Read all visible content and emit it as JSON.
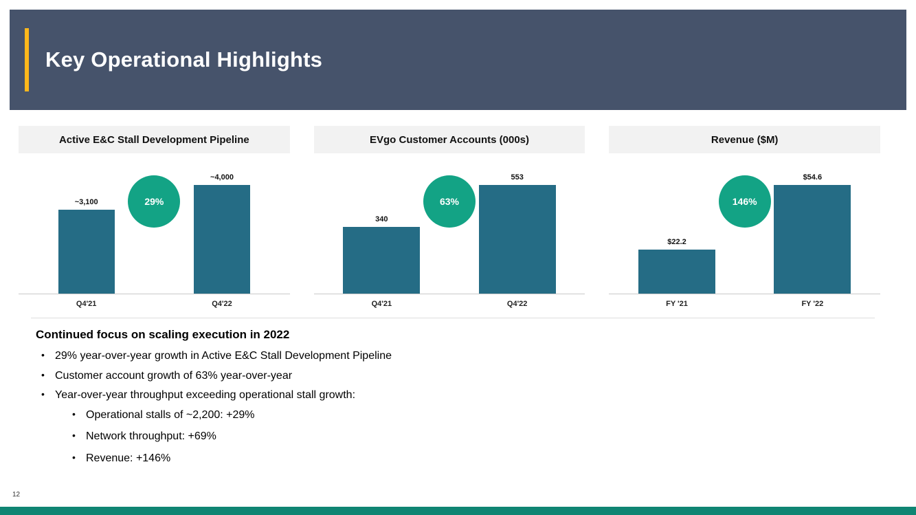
{
  "slide": {
    "title": "Key Operational Highlights",
    "page_number": "12"
  },
  "colors": {
    "header_bg": "#46536B",
    "accent_gold": "#FFB81C",
    "bar_teal": "#256C85",
    "badge_green": "#13A385",
    "footer_teal": "#0F8573",
    "panel_header_bg": "#F2F2F2"
  },
  "chart_data": [
    {
      "type": "bar",
      "title": "Active E&C Stall Development Pipeline",
      "categories": [
        "Q4'21",
        "Q4'22"
      ],
      "values": [
        3100,
        4000
      ],
      "value_labels": [
        "~3,100",
        "~4,000"
      ],
      "growth_badge": "29%",
      "ylim": [
        0,
        4000
      ],
      "grid": false,
      "legend": false
    },
    {
      "type": "bar",
      "title": "EVgo Customer Accounts (000s)",
      "categories": [
        "Q4'21",
        "Q4'22"
      ],
      "values": [
        340,
        553
      ],
      "value_labels": [
        "340",
        "553"
      ],
      "growth_badge": "63%",
      "ylim": [
        0,
        553
      ],
      "grid": false,
      "legend": false
    },
    {
      "type": "bar",
      "title": "Revenue ($M)",
      "categories": [
        "FY '21",
        "FY '22"
      ],
      "values": [
        22.2,
        54.6
      ],
      "value_labels": [
        "$22.2",
        "$54.6"
      ],
      "growth_badge": "146%",
      "ylim": [
        0,
        54.6
      ],
      "grid": false,
      "legend": false
    }
  ],
  "body": {
    "heading": "Continued focus on scaling execution in 2022",
    "bullets": [
      "29% year-over-year growth in Active E&C Stall Development Pipeline",
      "Customer account growth of 63% year-over-year",
      "Year-over-year throughput exceeding operational stall growth:"
    ],
    "sub_bullets": [
      "Operational stalls of ~2,200: +29%",
      "Network throughput: +69%",
      "Revenue: +146%"
    ]
  }
}
